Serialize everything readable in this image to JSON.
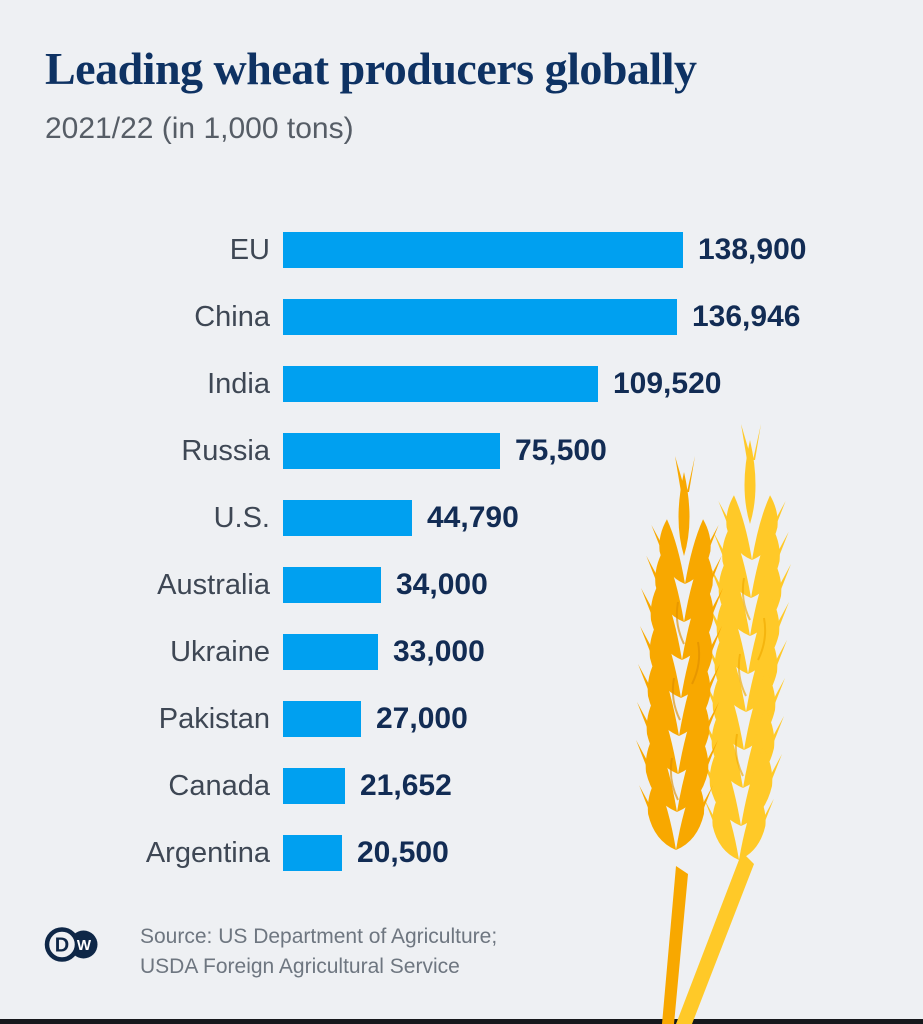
{
  "header": {
    "title": "Leading wheat producers globally",
    "subtitle": "2021/22 (in 1,000 tons)"
  },
  "chart_data": {
    "type": "bar",
    "orientation": "horizontal",
    "title": "Leading wheat producers globally",
    "subtitle": "2021/22 (in 1,000 tons)",
    "unit": "1,000 tons",
    "categories": [
      "EU",
      "China",
      "India",
      "Russia",
      "U.S.",
      "Australia",
      "Ukraine",
      "Pakistan",
      "Canada",
      "Argentina"
    ],
    "values": [
      138900,
      136946,
      109520,
      75500,
      44790,
      34000,
      33000,
      27000,
      21652,
      20500
    ],
    "value_labels": [
      "138,900",
      "136,946",
      "109,520",
      "75,500",
      "44,790",
      "34,000",
      "33,000",
      "27,000",
      "21,652",
      "20,500"
    ],
    "xlim": [
      0,
      138900
    ],
    "grid": false,
    "legend": false,
    "bar_color": "#00a0f0",
    "value_label_position": "right-of-bar"
  },
  "footer": {
    "source_line1": "Source: US Department of Agriculture;",
    "source_line2": "USDA Foreign Agricultural Service",
    "logo_d": "D",
    "logo_w": "W"
  },
  "colors": {
    "background": "#eef0f3",
    "title_navy": "#0e3263",
    "value_navy": "#122c54",
    "label_gray": "#3e4754",
    "bar_blue": "#00a0f0",
    "wheat_dark_gold": "#f8a800",
    "wheat_light_gold": "#ffc928",
    "logo_navy": "#0e2747",
    "bottom_rule": "#16181c"
  }
}
